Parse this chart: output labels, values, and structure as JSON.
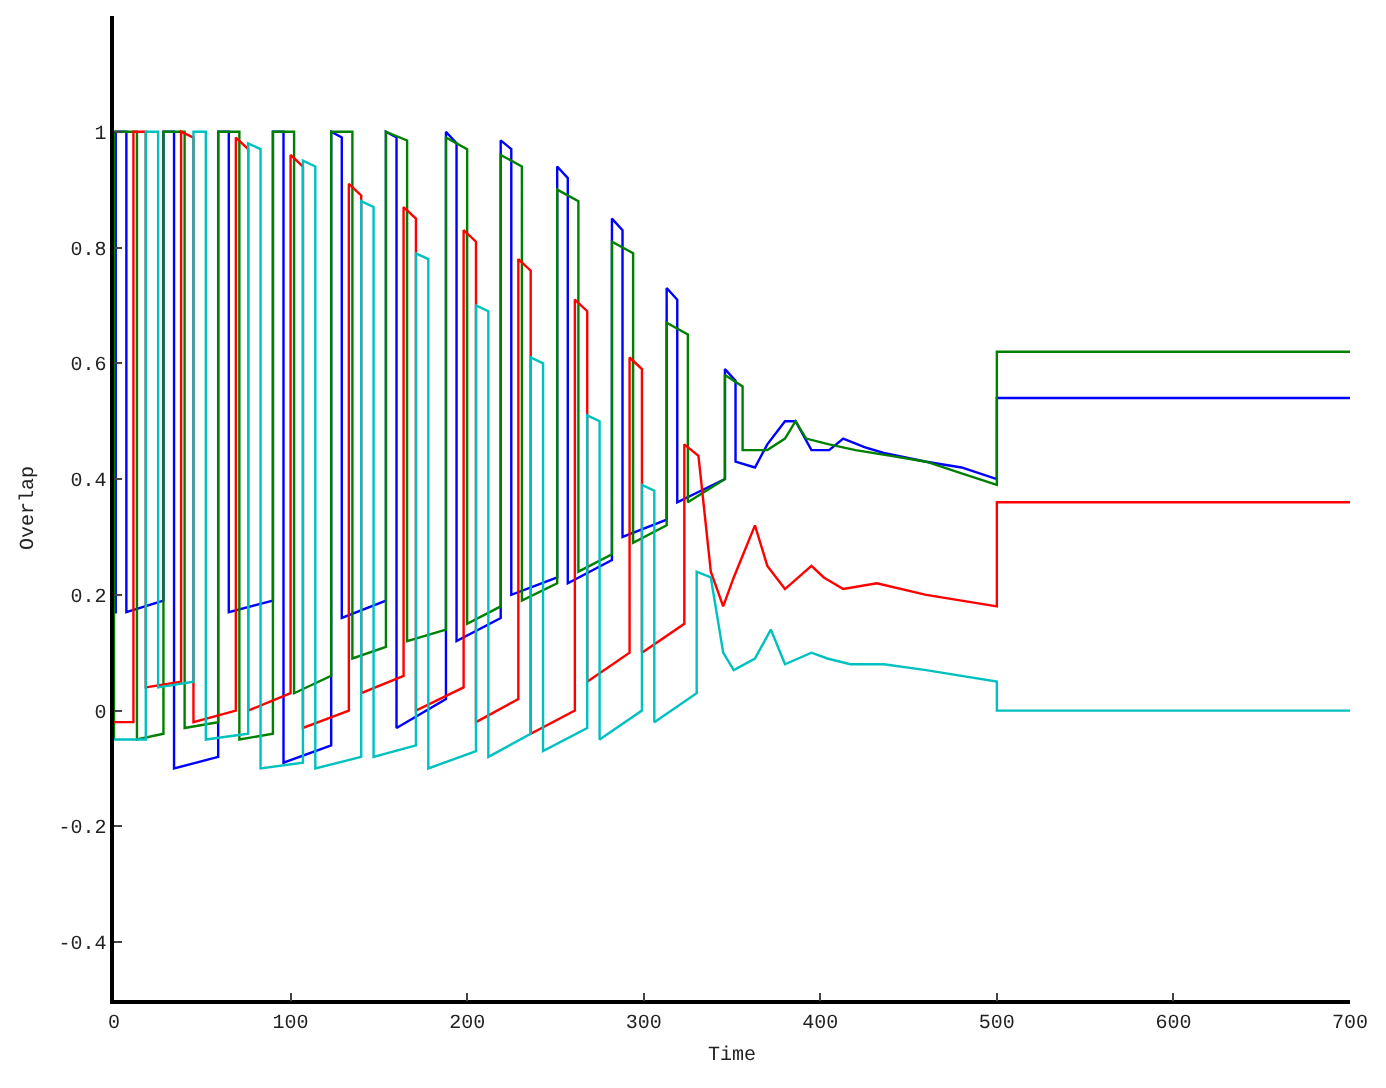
{
  "chart_data": {
    "type": "line",
    "xlabel": "Time",
    "ylabel": "Overlap",
    "xlim": [
      0,
      700
    ],
    "xticks": [
      0,
      100,
      200,
      300,
      400,
      500,
      600,
      700
    ],
    "ylim": [
      -0.5,
      1.2
    ],
    "yticks": [
      -0.4,
      -0.2,
      0,
      0.2,
      0.4,
      0.6,
      0.8,
      1
    ],
    "grid": false,
    "marker": "none",
    "line_style": "solid",
    "series": [
      {
        "color": "#0000ff",
        "x": [
          0,
          1,
          1,
          7,
          7,
          28,
          28,
          34,
          34,
          59,
          59,
          65,
          65,
          90,
          90,
          96,
          96,
          123,
          123,
          129,
          129,
          154,
          154,
          160,
          160,
          188,
          188,
          194,
          194,
          219,
          219,
          225,
          225,
          251,
          251,
          257,
          257,
          282,
          282,
          288,
          288,
          313,
          313,
          319,
          319,
          346,
          346,
          352,
          352,
          363,
          370,
          380,
          386,
          395,
          405,
          413,
          425,
          436,
          460,
          480,
          500,
          500,
          700
        ],
        "values": [
          0.17,
          0.17,
          1,
          1,
          0.17,
          0.19,
          1,
          1,
          -0.1,
          -0.08,
          1,
          1,
          0.17,
          0.19,
          1,
          1,
          -0.09,
          -0.06,
          1,
          0.99,
          0.16,
          0.19,
          1,
          0.99,
          -0.03,
          0.02,
          1,
          0.98,
          0.12,
          0.16,
          0.985,
          0.97,
          0.2,
          0.23,
          0.94,
          0.92,
          0.22,
          0.26,
          0.85,
          0.83,
          0.3,
          0.33,
          0.73,
          0.71,
          0.36,
          0.4,
          0.59,
          0.57,
          0.43,
          0.42,
          0.46,
          0.5,
          0.5,
          0.45,
          0.45,
          0.47,
          0.455,
          0.445,
          0.43,
          0.42,
          0.4,
          0.54,
          0.54
        ]
      },
      {
        "color": "#008000",
        "x": [
          0,
          0,
          13,
          13,
          28,
          28,
          40,
          40,
          59,
          59,
          71,
          71,
          90,
          90,
          102,
          102,
          123,
          123,
          135,
          135,
          154,
          154,
          166,
          166,
          188,
          188,
          200,
          200,
          219,
          219,
          231,
          231,
          251,
          251,
          263,
          263,
          282,
          282,
          294,
          294,
          313,
          313,
          325,
          325,
          346,
          346,
          356,
          356,
          370,
          380,
          386,
          392,
          405,
          420,
          440,
          460,
          480,
          500,
          500,
          700
        ],
        "values": [
          -0.05,
          1,
          1,
          -0.05,
          -0.04,
          1,
          1,
          -0.03,
          -0.02,
          1,
          1,
          -0.05,
          -0.04,
          1,
          1,
          0.03,
          0.06,
          1,
          1,
          0.09,
          0.11,
          1,
          0.985,
          0.12,
          0.14,
          0.99,
          0.97,
          0.15,
          0.18,
          0.96,
          0.94,
          0.19,
          0.22,
          0.9,
          0.88,
          0.24,
          0.27,
          0.81,
          0.79,
          0.29,
          0.32,
          0.67,
          0.65,
          0.36,
          0.4,
          0.58,
          0.56,
          0.45,
          0.45,
          0.47,
          0.5,
          0.47,
          0.46,
          0.45,
          0.44,
          0.43,
          0.41,
          0.39,
          0.62,
          0.62
        ]
      },
      {
        "color": "#ff0000",
        "x": [
          0,
          11,
          11,
          18,
          18,
          38,
          38,
          45,
          45,
          69,
          69,
          76,
          76,
          100,
          100,
          107,
          107,
          133,
          133,
          140,
          140,
          164,
          164,
          171,
          171,
          198,
          198,
          205,
          205,
          229,
          229,
          236,
          236,
          261,
          261,
          268,
          268,
          292,
          292,
          299,
          299,
          323,
          323,
          331,
          338,
          345,
          351,
          363,
          370,
          380,
          395,
          402,
          413,
          432,
          460,
          480,
          500,
          500,
          700
        ],
        "values": [
          -0.02,
          -0.02,
          1,
          1,
          0.04,
          0.05,
          1,
          0.99,
          -0.02,
          0,
          0.99,
          0.97,
          0,
          0.03,
          0.96,
          0.94,
          -0.03,
          0,
          0.91,
          0.89,
          0.03,
          0.06,
          0.87,
          0.85,
          0,
          0.04,
          0.83,
          0.81,
          -0.02,
          0.02,
          0.78,
          0.76,
          -0.04,
          0,
          0.71,
          0.69,
          0.05,
          0.1,
          0.61,
          0.59,
          0.1,
          0.15,
          0.46,
          0.44,
          0.24,
          0.18,
          0.23,
          0.32,
          0.25,
          0.21,
          0.25,
          0.23,
          0.21,
          0.22,
          0.2,
          0.19,
          0.18,
          0.36,
          0.36
        ]
      },
      {
        "color": "#00c0c0",
        "x": [
          0,
          18,
          18,
          25,
          25,
          45,
          45,
          52,
          52,
          76,
          76,
          83,
          83,
          107,
          107,
          114,
          114,
          140,
          140,
          147,
          147,
          171,
          171,
          178,
          178,
          205,
          205,
          212,
          212,
          236,
          236,
          243,
          243,
          268,
          268,
          275,
          275,
          299,
          299,
          306,
          306,
          330,
          330,
          338,
          345,
          351,
          363,
          372,
          380,
          395,
          404,
          417,
          436,
          460,
          480,
          500,
          500,
          700
        ],
        "values": [
          -0.05,
          -0.05,
          1,
          1,
          0.04,
          0.05,
          1,
          1,
          -0.05,
          -0.04,
          0.98,
          0.97,
          -0.1,
          -0.09,
          0.95,
          0.94,
          -0.1,
          -0.08,
          0.88,
          0.87,
          -0.08,
          -0.06,
          0.79,
          0.78,
          -0.1,
          -0.07,
          0.7,
          0.69,
          -0.08,
          -0.04,
          0.61,
          0.6,
          -0.07,
          -0.03,
          0.51,
          0.5,
          -0.05,
          0,
          0.39,
          0.38,
          -0.02,
          0.03,
          0.24,
          0.23,
          0.1,
          0.07,
          0.09,
          0.14,
          0.08,
          0.1,
          0.09,
          0.08,
          0.08,
          0.07,
          0.06,
          0.05,
          0,
          0
        ]
      }
    ]
  }
}
